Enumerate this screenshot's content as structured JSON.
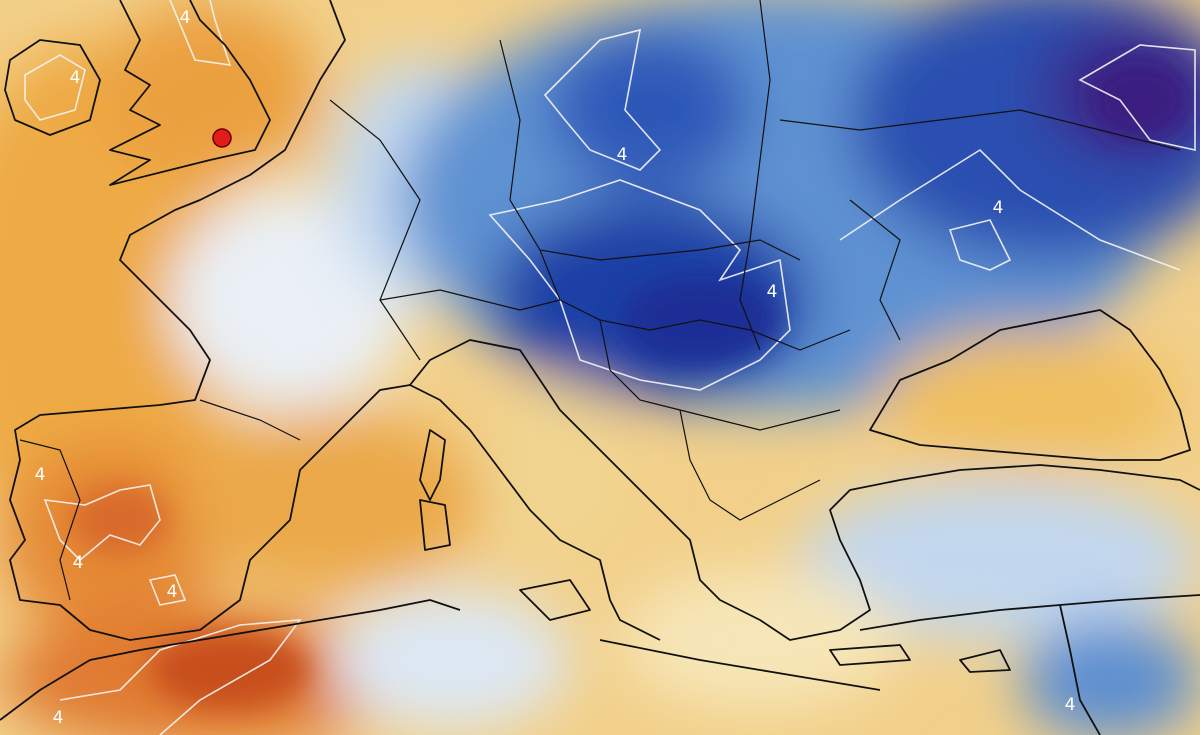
{
  "map": {
    "contour_labels": [
      "4",
      "4",
      "4",
      "4",
      "4",
      "4",
      "4",
      "4",
      "4",
      "4"
    ]
  }
}
